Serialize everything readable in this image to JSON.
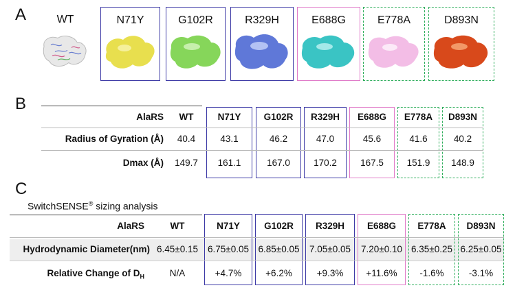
{
  "panelA": {
    "letter": "A",
    "variants": [
      {
        "label": "WT",
        "style": "none",
        "color": "#e6e6e6"
      },
      {
        "label": "N71Y",
        "style": "solid-blue",
        "color": "#e8df4e"
      },
      {
        "label": "G102R",
        "style": "solid-blue",
        "color": "#86d65a"
      },
      {
        "label": "R329H",
        "style": "solid-blue",
        "color": "#5f78d8"
      },
      {
        "label": "E688G",
        "style": "solid-pink",
        "color": "#3ac4c4"
      },
      {
        "label": "E778A",
        "style": "dash-green",
        "color": "#f3bde6"
      },
      {
        "label": "D893N",
        "style": "dash-green",
        "color": "#d8491b"
      }
    ]
  },
  "panelB": {
    "letter": "B",
    "header": [
      "AlaRS",
      "WT",
      "N71Y",
      "G102R",
      "R329H",
      "E688G",
      "E778A",
      "D893N"
    ],
    "rows": [
      {
        "label": "Radius of Gyration (Å)",
        "values": [
          "40.4",
          "43.1",
          "46.2",
          "47.0",
          "45.6",
          "41.6",
          "40.2"
        ]
      },
      {
        "label": "Dmax (Å)",
        "values": [
          "149.7",
          "161.1",
          "167.0",
          "170.2",
          "167.5",
          "151.9",
          "148.9"
        ]
      }
    ]
  },
  "panelC": {
    "letter": "C",
    "subtitle_main": "SwitchSENSE",
    "subtitle_reg": "®",
    "subtitle_rest": " sizing analysis",
    "header": [
      "AlaRS",
      "WT",
      "N71Y",
      "G102R",
      "R329H",
      "E688G",
      "E778A",
      "D893N"
    ],
    "rows": [
      {
        "label": "Hydrodynamic Diameter(nm)",
        "values": [
          "6.45±0.15",
          "6.75±0.05",
          "6.85±0.05",
          "7.05±0.05",
          "7.20±0.10",
          "6.35±0.25",
          "6.25±0.05"
        ]
      },
      {
        "label_main": "Relative Change of D",
        "label_sub": "H",
        "values": [
          "N/A",
          "+4.7%",
          "+6.2%",
          "+9.3%",
          "+11.6%",
          "-1.6%",
          "-3.1%"
        ]
      }
    ]
  }
}
